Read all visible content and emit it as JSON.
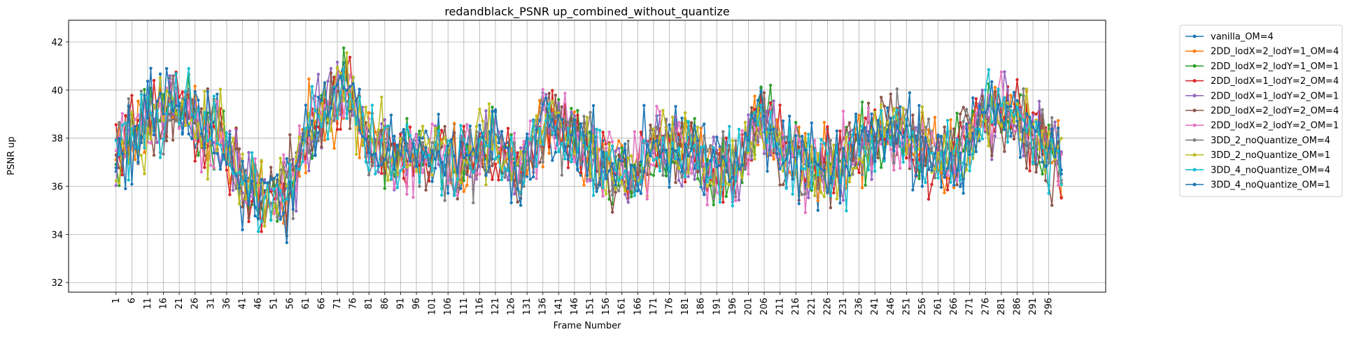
{
  "chart_data": {
    "type": "line",
    "title": "redandblack_PSNR up_combined_without_quantize",
    "xlabel": "Frame Number",
    "ylabel": "PSNR up",
    "xlim": [
      -14,
      314
    ],
    "ylim": [
      31.6,
      42.9
    ],
    "x_ticks": [
      "1",
      "6",
      "11",
      "16",
      "21",
      "26",
      "31",
      "36",
      "41",
      "46",
      "51",
      "56",
      "61",
      "66",
      "71",
      "76",
      "81",
      "86",
      "91",
      "96",
      "101",
      "106",
      "111",
      "116",
      "121",
      "126",
      "131",
      "136",
      "141",
      "146",
      "151",
      "156",
      "161",
      "166",
      "171",
      "176",
      "181",
      "186",
      "191",
      "196",
      "201",
      "206",
      "211",
      "216",
      "221",
      "226",
      "231",
      "236",
      "241",
      "246",
      "251",
      "256",
      "261",
      "266",
      "271",
      "276",
      "281",
      "286",
      "291",
      "296"
    ],
    "y_ticks": [
      32,
      34,
      36,
      38,
      40,
      42
    ],
    "y_tick_labels": [
      "32",
      "34",
      "36",
      "38",
      "40",
      "42"
    ],
    "grid": true,
    "legend_position": "outside-right",
    "frames": {
      "start": 1,
      "end": 300
    },
    "profile": {
      "x": [
        1,
        10,
        20,
        28,
        33,
        40,
        45,
        55,
        62,
        70,
        74,
        80,
        90,
        100,
        110,
        120,
        128,
        137,
        145,
        155,
        163,
        172,
        180,
        190,
        197,
        205,
        212,
        222,
        230,
        240,
        248,
        258,
        265,
        272,
        282,
        292,
        300
      ],
      "y": [
        37.6,
        38.7,
        39.8,
        38.1,
        38.3,
        36.5,
        35.6,
        35.6,
        38.3,
        39.6,
        40.3,
        38.0,
        37.2,
        37.4,
        37.0,
        37.8,
        36.4,
        38.8,
        38.1,
        37.0,
        36.2,
        37.9,
        37.8,
        36.6,
        36.5,
        39.0,
        37.3,
        36.7,
        36.8,
        37.9,
        38.3,
        37.4,
        37.0,
        38.4,
        39.1,
        38.1,
        37.1
      ]
    },
    "series": [
      {
        "name": "vanilla_OM=4",
        "color": "#1f77b4",
        "seed": 11,
        "amp": 1.35
      },
      {
        "name": "2DD_lodX=2_lodY=1_OM=4",
        "color": "#ff7f0e",
        "seed": 23,
        "amp": 1.35
      },
      {
        "name": "2DD_lodX=2_lodY=1_OM=1",
        "color": "#2ca02c",
        "seed": 37,
        "amp": 1.3
      },
      {
        "name": "2DD_lodX=1_lodY=2_OM=4",
        "color": "#d62728",
        "seed": 41,
        "amp": 1.3
      },
      {
        "name": "2DD_lodX=1_lodY=2_OM=1",
        "color": "#9467bd",
        "seed": 53,
        "amp": 1.3
      },
      {
        "name": "2DD_lodX=2_lodY=2_OM=4",
        "color": "#8c564b",
        "seed": 67,
        "amp": 1.4
      },
      {
        "name": "2DD_lodX=2_lodY=2_OM=1",
        "color": "#e377c2",
        "seed": 71,
        "amp": 1.35
      },
      {
        "name": "3DD_2_noQuantize_OM=4",
        "color": "#7f7f7f",
        "seed": 83,
        "amp": 1.3
      },
      {
        "name": "3DD_2_noQuantize_OM=1",
        "color": "#bcbd22",
        "seed": 97,
        "amp": 1.3
      },
      {
        "name": "3DD_4_noQuantize_OM=4",
        "color": "#17becf",
        "seed": 101,
        "amp": 1.4
      },
      {
        "name": "3DD_4_noQuantize_OM=1",
        "color": "#1f77b4",
        "seed": 113,
        "amp": 1.45
      }
    ]
  }
}
